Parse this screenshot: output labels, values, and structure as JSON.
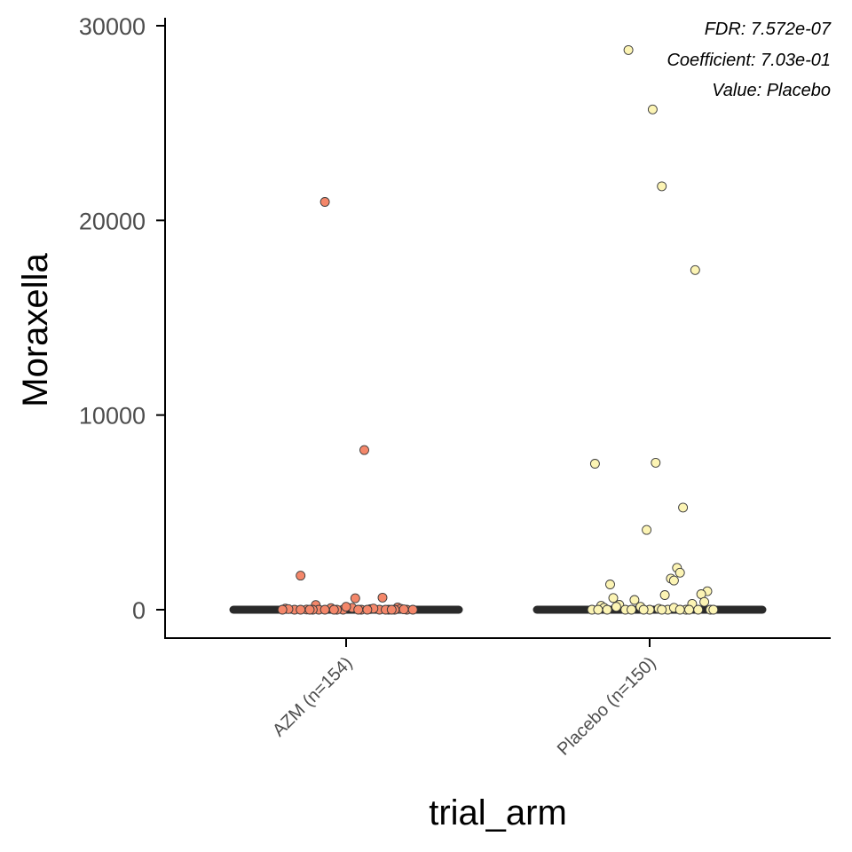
{
  "chart_data": {
    "type": "scatter",
    "title": "",
    "xlabel": "trial_arm",
    "ylabel": "Moraxella",
    "ylim": [
      -1400,
      30300
    ],
    "yticks": [
      0,
      10000,
      20000,
      30000
    ],
    "ytick_labels": [
      "0",
      "10000",
      "20000",
      "30000"
    ],
    "categories": [
      "AZM (n=154)",
      "Placebo (n=150)"
    ],
    "grid": false,
    "legend": "none",
    "annotations": [
      "FDR: 7.572e-07",
      "Coefficient: 7.03e-01",
      "Value: Placebo"
    ],
    "colors": {
      "AZM (n=154)": "#f4876a",
      "Placebo (n=150)": "#fcf4b4",
      "point_stroke": "#3a3a3a",
      "median_bar": "#2a2a2a",
      "axis": "#000000"
    },
    "median_bars": [
      {
        "category": "AZM (n=154)",
        "value": 0
      },
      {
        "category": "Placebo (n=150)",
        "value": 0
      }
    ],
    "series": [
      {
        "category": "AZM (n=154)",
        "jitter": [
          -0.07,
          0.06,
          -0.15,
          0.12,
          0.03,
          -0.1,
          0.17,
          -0.2,
          -0.13,
          -0.09,
          -0.05,
          -0.01,
          0.02,
          0.05,
          0.08,
          0.11,
          0.14,
          0.18,
          0.2,
          0.22,
          -0.17,
          -0.19,
          -0.15,
          -0.11,
          -0.07,
          -0.03,
          0.0,
          0.04,
          0.09,
          0.13,
          0.16,
          0.19,
          -0.21,
          -0.12,
          -0.04,
          0.07,
          0.15
        ],
        "values": [
          20950,
          8200,
          1750,
          620,
          590,
          240,
          120,
          60,
          10,
          0,
          80,
          0,
          100,
          0,
          30,
          0,
          0,
          50,
          0,
          0,
          0,
          30,
          0,
          0,
          0,
          0,
          150,
          0,
          60,
          0,
          0,
          20,
          0,
          0,
          0,
          0,
          0
        ]
      },
      {
        "category": "Placebo (n=150)",
        "jitter": [
          -0.07,
          0.01,
          0.04,
          0.15,
          -0.18,
          0.02,
          0.11,
          -0.01,
          0.09,
          -0.13,
          0.07,
          0.08,
          0.05,
          0.1,
          0.19,
          0.17,
          -0.05,
          -0.12,
          -0.16,
          -0.19,
          -0.15,
          -0.1,
          -0.08,
          -0.03,
          0.0,
          0.03,
          0.06,
          0.08,
          0.12,
          0.14,
          0.16,
          0.18,
          0.2,
          -0.17,
          -0.14,
          -0.11,
          -0.06,
          -0.02,
          0.04,
          0.1,
          0.13,
          0.21
        ],
        "values": [
          28750,
          25700,
          21750,
          17450,
          7500,
          7550,
          5250,
          4100,
          2150,
          1300,
          1600,
          1500,
          750,
          1900,
          950,
          800,
          500,
          600,
          200,
          0,
          100,
          250,
          0,
          150,
          0,
          50,
          0,
          100,
          0,
          300,
          0,
          400,
          0,
          0,
          0,
          150,
          0,
          0,
          0,
          0,
          0,
          0
        ]
      }
    ]
  }
}
